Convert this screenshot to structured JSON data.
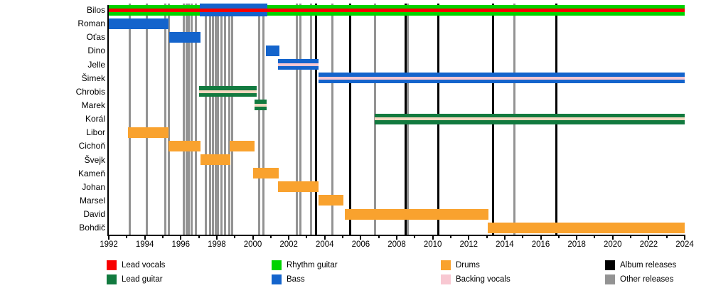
{
  "chart_data": {
    "type": "timeline-gantt",
    "description": "Band members timeline with instrument roles and release markers",
    "x_axis": {
      "start_year": 1992,
      "end_year": 2024,
      "tick_label_step": 2,
      "tick_labels": [
        "1992",
        "1994",
        "1996",
        "1998",
        "2000",
        "2002",
        "2004",
        "2006",
        "2008",
        "2010",
        "2012",
        "2014",
        "2016",
        "2018",
        "2020",
        "2022",
        "2024"
      ]
    },
    "role_colors": {
      "lead_vocals": "#f80000",
      "lead_guitar": "#127a3f",
      "rhythm_guitar": "#00d300",
      "bass": "#1464cc",
      "drums": "#f9a22e",
      "backing_vocals": "#f8c8d2",
      "backing_vocals_peach": "#f2d8bf",
      "album_releases": "#000000",
      "other_releases": "#939393"
    },
    "members": [
      {
        "name": "Bilos",
        "segments": [
          {
            "role": "rhythm_guitar",
            "start": 1992.0,
            "end": 2024.0
          },
          {
            "role": "bass",
            "start": 1997.05,
            "end": 2000.81,
            "tall": true
          },
          {
            "role": "lead_vocals",
            "start": 1992.0,
            "end": 2024.0,
            "thin": true
          }
        ]
      },
      {
        "name": "Roman",
        "segments": [
          {
            "role": "bass",
            "start": 1992.0,
            "end": 1995.32
          }
        ]
      },
      {
        "name": "Oťas",
        "segments": [
          {
            "role": "bass",
            "start": 1995.36,
            "end": 1997.1
          }
        ]
      },
      {
        "name": "Dino",
        "segments": [
          {
            "role": "bass",
            "start": 2000.73,
            "end": 2001.48
          }
        ]
      },
      {
        "name": "Jelle",
        "segments": [
          {
            "role": "bass",
            "start": 2001.4,
            "end": 2003.66,
            "stripe": "backing_vocals"
          }
        ]
      },
      {
        "name": "Šimek",
        "segments": [
          {
            "role": "bass",
            "start": 2003.66,
            "end": 2024.0,
            "stripe": "backing_vocals"
          }
        ]
      },
      {
        "name": "Chrobis",
        "segments": [
          {
            "role": "lead_guitar",
            "start": 1997.02,
            "end": 2000.22,
            "stripe": "backing_vocals_peach"
          }
        ]
      },
      {
        "name": "Marek",
        "segments": [
          {
            "role": "lead_guitar",
            "start": 2000.1,
            "end": 2000.77,
            "stripe": "backing_vocals_peach"
          }
        ]
      },
      {
        "name": "Korál",
        "segments": [
          {
            "role": "lead_guitar",
            "start": 2006.78,
            "end": 2024.0,
            "stripe": "backing_vocals_peach"
          }
        ]
      },
      {
        "name": "Libor",
        "segments": [
          {
            "role": "drums",
            "start": 1993.07,
            "end": 1995.32
          }
        ]
      },
      {
        "name": "Cichoň",
        "segments": [
          {
            "role": "drums",
            "start": 1995.32,
            "end": 1997.1
          },
          {
            "role": "drums",
            "start": 1998.72,
            "end": 2000.1
          }
        ]
      },
      {
        "name": "Švejk",
        "segments": [
          {
            "role": "drums",
            "start": 1997.1,
            "end": 1998.76
          }
        ]
      },
      {
        "name": "Kameň",
        "segments": [
          {
            "role": "drums",
            "start": 2000.02,
            "end": 2001.44
          }
        ]
      },
      {
        "name": "Johan",
        "segments": [
          {
            "role": "drums",
            "start": 2001.4,
            "end": 2003.66
          }
        ]
      },
      {
        "name": "Marsel",
        "segments": [
          {
            "role": "drums",
            "start": 2003.66,
            "end": 2005.04
          }
        ]
      },
      {
        "name": "David",
        "segments": [
          {
            "role": "drums",
            "start": 2005.12,
            "end": 2013.1
          }
        ]
      },
      {
        "name": "Bohdič",
        "segments": [
          {
            "role": "drums",
            "start": 2013.06,
            "end": 2024.0
          }
        ]
      }
    ],
    "releases": {
      "album": [
        2003.5,
        2005.43,
        2008.51,
        2010.33,
        2013.37,
        2016.85
      ],
      "other": [
        1993.15,
        1994.13,
        1995.16,
        1995.32,
        1996.15,
        1996.31,
        1996.46,
        1996.62,
        1996.82,
        1997.41,
        1997.61,
        1997.77,
        1997.93,
        1998.08,
        1998.28,
        1998.44,
        1998.68,
        1998.87,
        2000.34,
        2000.61,
        2002.43,
        2002.63,
        2003.22,
        2004.44,
        2006.78,
        2008.63,
        2014.52
      ]
    },
    "legend": {
      "items": [
        {
          "label": "Lead vocals",
          "color": "#f80000",
          "col": 0,
          "row": 0
        },
        {
          "label": "Lead guitar",
          "color": "#127a3f",
          "col": 0,
          "row": 1
        },
        {
          "label": "Rhythm guitar",
          "color": "#00d300",
          "col": 1,
          "row": 0
        },
        {
          "label": "Bass",
          "color": "#1464cc",
          "col": 1,
          "row": 1
        },
        {
          "label": "Drums",
          "color": "#f9a22e",
          "col": 2,
          "row": 0
        },
        {
          "label": "Backing vocals",
          "color": "#f8c8d2",
          "col": 2,
          "row": 1
        },
        {
          "label": "Album releases",
          "color": "#000000",
          "col": 3,
          "row": 0
        },
        {
          "label": "Other releases",
          "color": "#939393",
          "col": 3,
          "row": 1
        }
      ]
    }
  }
}
